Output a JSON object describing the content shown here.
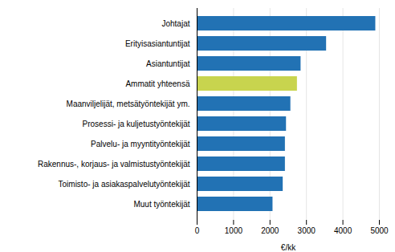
{
  "chart_data": {
    "type": "bar",
    "orientation": "horizontal",
    "categories": [
      "Johtajat",
      "Erityisasiantuntijat",
      "Asiantuntijat",
      "Ammatit yhteensä",
      "Maanviljelijät, metsätyöntekijät ym.",
      "Prosessi- ja kuljetustyöntekijät",
      "Palvelu- ja myyntityöntekijät",
      "Rakennus-, korjaus- ja valmistustyöntekijät",
      "Toimisto- ja asiakaspalvelutyöntekijät",
      "Muut työntekijät"
    ],
    "values": [
      4900,
      3550,
      2850,
      2750,
      2570,
      2450,
      2420,
      2420,
      2360,
      2080
    ],
    "colors": [
      "#2272b4",
      "#2272b4",
      "#2272b4",
      "#c8d44e",
      "#2272b4",
      "#2272b4",
      "#2272b4",
      "#2272b4",
      "#2272b4",
      "#2272b4"
    ],
    "xlabel": "€/kk",
    "xlim": [
      0,
      5000
    ],
    "xticks": [
      0,
      1000,
      2000,
      3000,
      4000,
      5000
    ],
    "grid": true
  }
}
